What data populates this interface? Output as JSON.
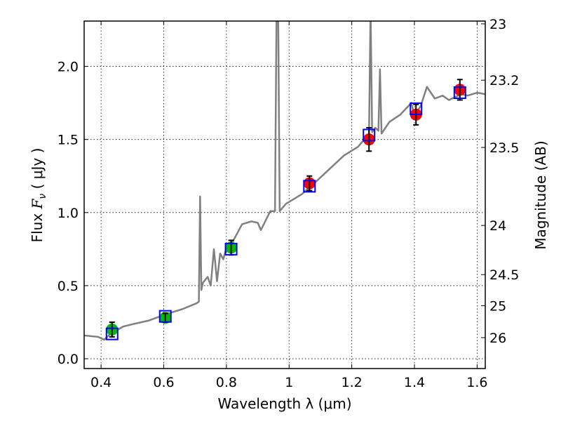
{
  "chart_data": {
    "type": "scatter",
    "title": "",
    "xlabel": "Wavelength  λ (μm)",
    "ylabel": "Flux  F_ν  ( μJy )",
    "ylabel_parts": {
      "pre": "Flux  ",
      "var": "F",
      "sub": "ν",
      "post": "  ( μJy )"
    },
    "y2label": "Magnitude (AB)",
    "xlim": [
      0.346,
      1.626
    ],
    "ylim": [
      -0.067,
      2.31
    ],
    "grid": true,
    "xticks": [
      0.4,
      0.6,
      0.8,
      1.0,
      1.2,
      1.4,
      1.6
    ],
    "xtick_labels": [
      "0.4",
      "0.6",
      "0.8",
      "1",
      "1.2",
      "1.4",
      "1.6"
    ],
    "yticks": [
      0.0,
      0.5,
      1.0,
      1.5,
      2.0
    ],
    "ytick_labels": [
      "0.0",
      "0.5",
      "1.0",
      "1.5",
      "2.0"
    ],
    "y2ticks": [
      23,
      23.2,
      23.5,
      24,
      24.5,
      25,
      26
    ],
    "y2tick_labels": [
      "23",
      "23.2",
      "23.5",
      "24",
      "24.5",
      "25",
      "26"
    ],
    "colors": {
      "spectrum": "#808080",
      "optical": "#00bb00",
      "infrared": "#ff0000",
      "model": "#0000ff",
      "error": "#000000"
    },
    "series": [
      {
        "name": "spectrum",
        "kind": "line",
        "x": [
          0.347,
          0.39,
          0.41,
          0.43,
          0.47,
          0.5,
          0.55,
          0.615,
          0.66,
          0.705,
          0.712,
          0.716,
          0.72,
          0.725,
          0.74,
          0.75,
          0.76,
          0.77,
          0.78,
          0.79,
          0.8,
          0.82,
          0.85,
          0.88,
          0.9,
          0.91,
          0.94,
          0.955,
          0.96,
          0.965,
          0.97,
          0.99,
          1.04,
          1.085,
          1.13,
          1.175,
          1.22,
          1.24,
          1.255,
          1.26,
          1.265,
          1.275,
          1.285,
          1.29,
          1.295,
          1.32,
          1.355,
          1.39,
          1.4,
          1.42,
          1.44,
          1.465,
          1.49,
          1.51,
          1.55,
          1.57,
          1.6,
          1.626
        ],
        "y": [
          0.159,
          0.15,
          0.13,
          0.17,
          0.22,
          0.236,
          0.26,
          0.31,
          0.34,
          0.38,
          0.39,
          1.11,
          0.47,
          0.52,
          0.56,
          0.5,
          0.75,
          0.53,
          0.72,
          0.68,
          0.76,
          0.8,
          0.92,
          0.94,
          0.93,
          0.88,
          1.01,
          1.01,
          2.4,
          2.4,
          1.01,
          1.06,
          1.125,
          1.21,
          1.3,
          1.39,
          1.45,
          1.5,
          1.53,
          2.4,
          1.55,
          1.58,
          1.56,
          1.98,
          1.54,
          1.62,
          1.67,
          1.75,
          1.66,
          1.73,
          1.86,
          1.78,
          1.8,
          1.77,
          1.81,
          1.8,
          1.82,
          1.81
        ]
      },
      {
        "name": "optical photometry",
        "kind": "errorbar",
        "x": [
          0.435,
          0.605,
          0.815
        ],
        "y": [
          0.2,
          0.28,
          0.76
        ],
        "yerr": [
          0.05,
          0.03,
          0.05
        ]
      },
      {
        "name": "infrared photometry",
        "kind": "errorbar",
        "x": [
          1.065,
          1.255,
          1.405,
          1.545
        ],
        "y": [
          1.2,
          1.5,
          1.67,
          1.84
        ],
        "yerr": [
          0.05,
          0.08,
          0.07,
          0.07
        ]
      },
      {
        "name": "model photometry",
        "kind": "square",
        "x": [
          0.435,
          0.605,
          0.815,
          1.065,
          1.255,
          1.405,
          1.545
        ],
        "y": [
          0.17,
          0.29,
          0.75,
          1.18,
          1.53,
          1.71,
          1.82
        ]
      }
    ]
  }
}
